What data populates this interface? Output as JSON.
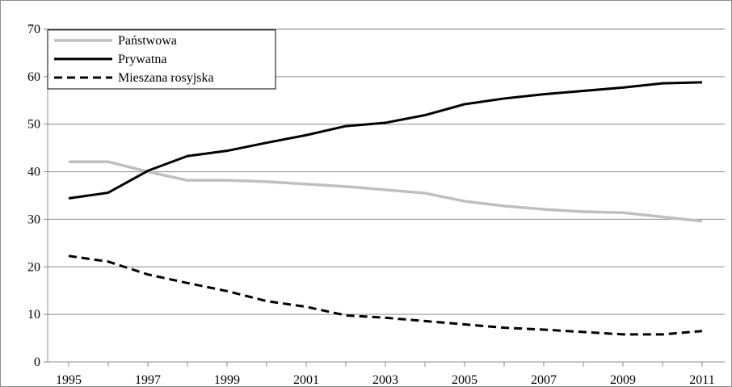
{
  "chart_data": {
    "type": "line",
    "title": "",
    "xlabel": "",
    "ylabel": "",
    "x": [
      1995,
      1996,
      1997,
      1998,
      1999,
      2000,
      2001,
      2002,
      2003,
      2004,
      2005,
      2006,
      2007,
      2008,
      2009,
      2010,
      2011
    ],
    "x_tick_labels": [
      "1995",
      "1997",
      "1999",
      "2001",
      "2003",
      "2005",
      "2007",
      "2009",
      "2011"
    ],
    "y_tick_labels": [
      "0",
      "10",
      "20",
      "30",
      "40",
      "50",
      "60",
      "70"
    ],
    "ylim": [
      0,
      70
    ],
    "grid": "horizontal",
    "legend_position": "top-left",
    "series": [
      {
        "name": "Państwowa",
        "color": "#bfbfbf",
        "dash": "solid",
        "values": [
          42.1,
          42.1,
          40.0,
          38.2,
          38.2,
          37.9,
          37.4,
          36.9,
          36.2,
          35.5,
          33.8,
          32.8,
          32.1,
          31.6,
          31.4,
          30.5,
          29.6
        ]
      },
      {
        "name": "Prywatna",
        "color": "#000000",
        "dash": "solid",
        "values": [
          34.4,
          35.6,
          40.2,
          43.3,
          44.4,
          46.1,
          47.7,
          49.6,
          50.3,
          51.9,
          54.2,
          55.4,
          56.3,
          57.0,
          57.7,
          58.6,
          58.8
        ]
      },
      {
        "name": "Mieszana rosyjska",
        "color": "#000000",
        "dash": "dashed",
        "values": [
          22.3,
          21.1,
          18.4,
          16.6,
          14.9,
          12.8,
          11.6,
          9.8,
          9.3,
          8.6,
          7.9,
          7.2,
          6.8,
          6.3,
          5.8,
          5.8,
          6.5
        ]
      }
    ]
  }
}
